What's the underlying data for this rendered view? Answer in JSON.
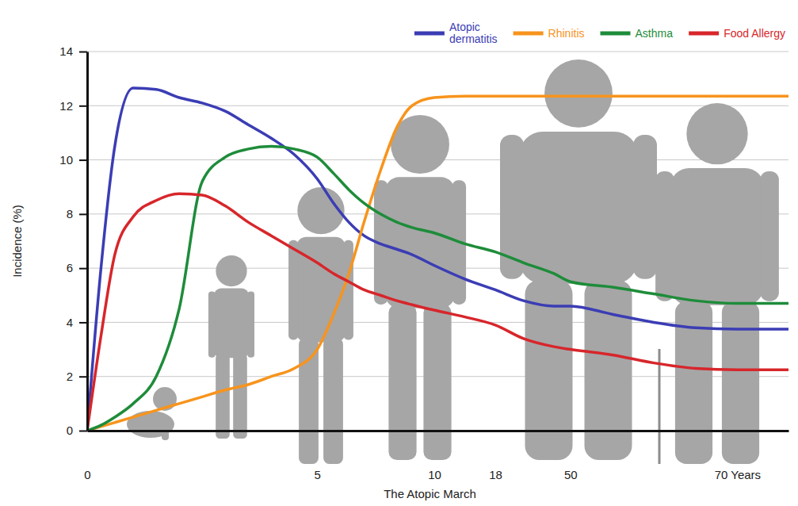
{
  "chart_data": {
    "type": "line",
    "x_label": "The Atopic March",
    "y_label": "Incidence (%)",
    "x": [
      0,
      0.3,
      0.6,
      1,
      1.5,
      2,
      2.5,
      3,
      3.5,
      4,
      4.5,
      5,
      5.7,
      6.35,
      7,
      7.7,
      8.4,
      9.05,
      10,
      14,
      18,
      30,
      43,
      50,
      55,
      60,
      65,
      70,
      76
    ],
    "xlim": [
      0,
      76
    ],
    "xticks": [
      0,
      5,
      10,
      18,
      50,
      {
        "value": 70,
        "label": "70 Years"
      }
    ],
    "ylim": [
      0,
      14
    ],
    "yticks": [
      0,
      2,
      4,
      6,
      8,
      10,
      12,
      14
    ],
    "grid": true,
    "legend": "top-right",
    "series": [
      {
        "name": "Atopic dermatitis",
        "color": "#3b3db4",
        "values": [
          0,
          6,
          10.5,
          12.65,
          12.6,
          12.3,
          12.1,
          11.8,
          11.3,
          10.8,
          10.2,
          9.3,
          8.4,
          7.7,
          7.2,
          6.9,
          6.7,
          6.5,
          6.1,
          5.6,
          5.2,
          4.8,
          4.6,
          4.6,
          4.3,
          4.0,
          3.8,
          3.75,
          3.75
        ]
      },
      {
        "name": "Rhinitis",
        "color": "#f7941d",
        "values": [
          0,
          0.15,
          0.3,
          0.5,
          0.75,
          1.0,
          1.25,
          1.5,
          1.7,
          2.0,
          2.3,
          3.0,
          4.3,
          5.8,
          7.7,
          9.6,
          11.2,
          12.0,
          12.3,
          12.35,
          12.35,
          12.35,
          12.35,
          12.35,
          12.35,
          12.35,
          12.35,
          12.35,
          12.35
        ]
      },
      {
        "name": "Asthma",
        "color": "#1e8c3a",
        "values": [
          0,
          0.2,
          0.5,
          1.0,
          2.0,
          4.5,
          9.2,
          10.1,
          10.4,
          10.5,
          10.4,
          10.1,
          9.5,
          8.9,
          8.4,
          8.0,
          7.7,
          7.5,
          7.3,
          6.9,
          6.6,
          6.2,
          5.8,
          5.5,
          5.3,
          5.05,
          4.8,
          4.7,
          4.7
        ]
      },
      {
        "name": "Food Allergy",
        "color": "#d7262b",
        "values": [
          0,
          3.5,
          6.5,
          7.9,
          8.5,
          8.75,
          8.7,
          8.3,
          7.7,
          7.2,
          6.7,
          6.2,
          5.8,
          5.5,
          5.2,
          5.0,
          4.8,
          4.65,
          4.45,
          4.2,
          3.9,
          3.4,
          3.1,
          3.0,
          2.8,
          2.5,
          2.3,
          2.25,
          2.25
        ]
      }
    ]
  }
}
